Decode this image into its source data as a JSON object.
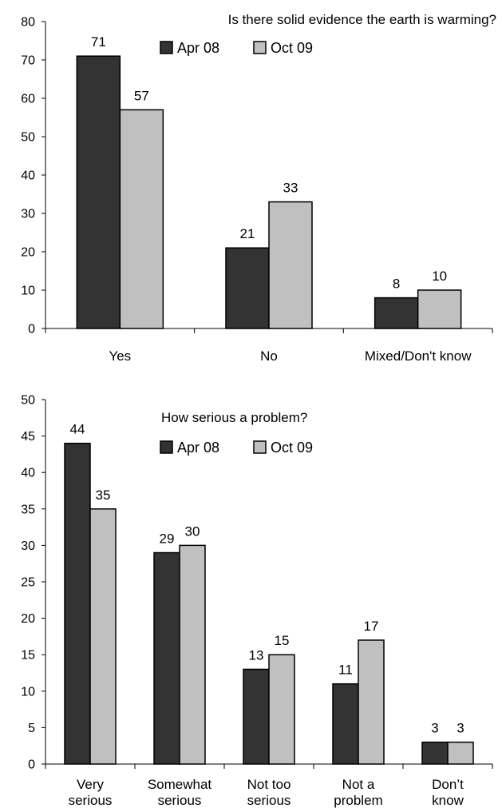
{
  "chart_data": [
    {
      "type": "bar",
      "title": "Is there solid evidence the earth is warming?",
      "categories": [
        "Yes",
        "No",
        "Mixed/Don't know"
      ],
      "series": [
        {
          "name": "Apr 08",
          "values": [
            71,
            21,
            8
          ],
          "color": "#333333"
        },
        {
          "name": "Oct 09",
          "values": [
            57,
            33,
            10
          ],
          "color": "#c0c0c0"
        }
      ],
      "ylim": [
        0,
        80
      ],
      "yticks": [
        0,
        10,
        20,
        30,
        40,
        50,
        60,
        70,
        80
      ],
      "legend": "top-right",
      "grid": false
    },
    {
      "type": "bar",
      "title": "How serious a problem?",
      "categories": [
        [
          "Very",
          "serious"
        ],
        [
          "Somewhat",
          "serious"
        ],
        [
          "Not too",
          "serious"
        ],
        [
          "Not a",
          "problem"
        ],
        [
          "Don’t",
          "know"
        ]
      ],
      "series": [
        {
          "name": "Apr 08",
          "values": [
            44,
            29,
            13,
            11,
            3
          ],
          "color": "#333333"
        },
        {
          "name": "Oct 09",
          "values": [
            35,
            30,
            15,
            17,
            3
          ],
          "color": "#c0c0c0"
        }
      ],
      "ylim": [
        0,
        50
      ],
      "yticks": [
        0,
        5,
        10,
        15,
        20,
        25,
        30,
        35,
        40,
        45,
        50
      ],
      "legend": "top-center",
      "grid": false
    }
  ]
}
